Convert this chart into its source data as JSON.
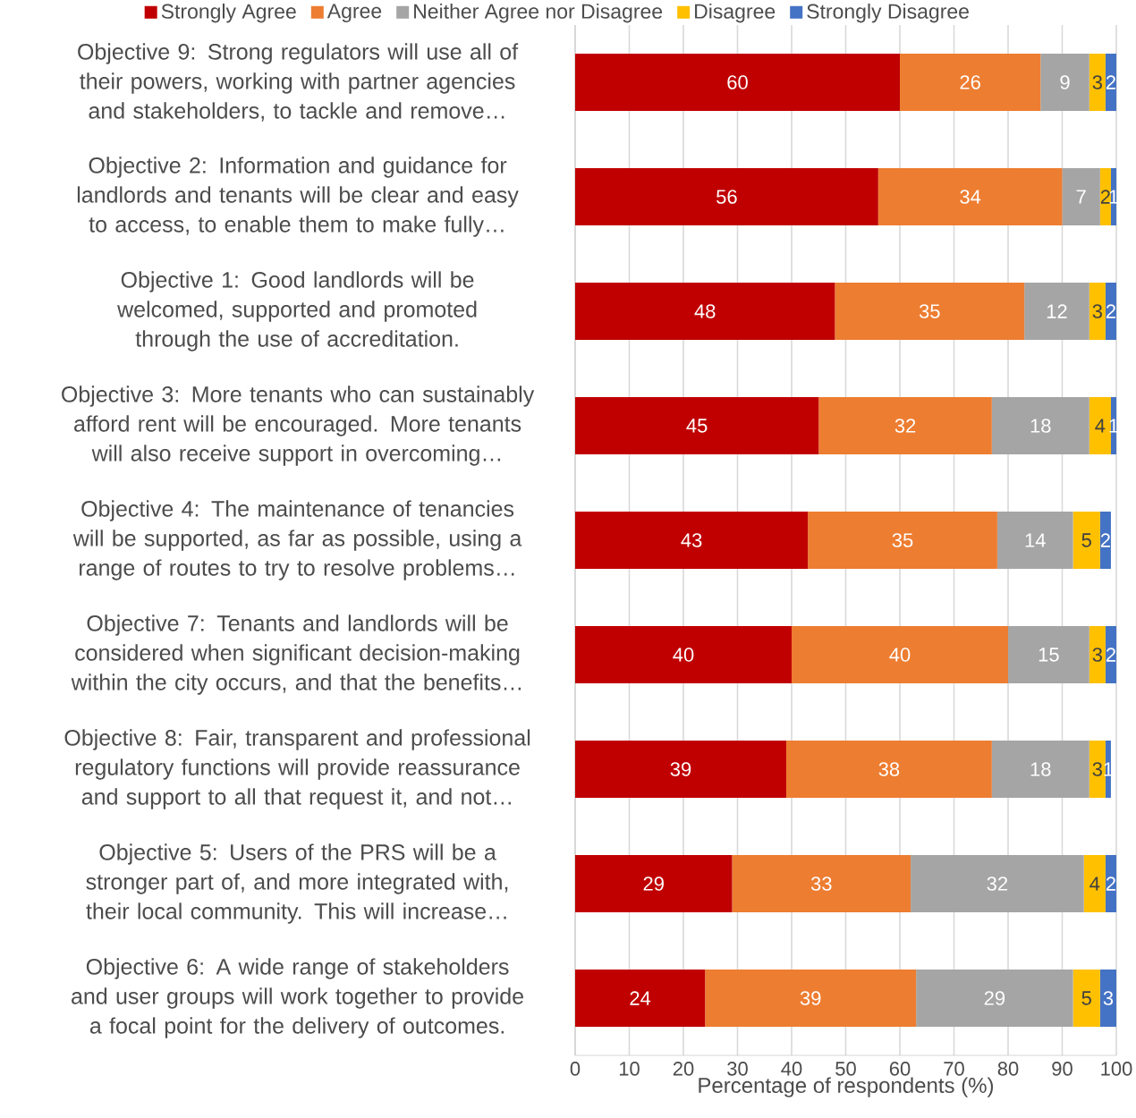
{
  "chart_data": {
    "type": "bar",
    "orientation": "horizontal",
    "stacked": true,
    "data_labels": true,
    "grid": "x",
    "legend": "top",
    "xlabel": "Percentage of respondents (%)",
    "xlim": [
      0,
      100
    ],
    "xticks": [
      0,
      10,
      20,
      30,
      40,
      50,
      60,
      70,
      80,
      90,
      100
    ],
    "categories": [
      "Objective 9: Strong regulators will use all of their powers, working with partner agencies and stakeholders, to tackle and remove…",
      "Objective 2: Information and guidance for landlords and tenants will be clear and easy to access, to enable them to make fully…",
      "Objective 1: Good landlords will be welcomed, supported and promoted through the use of accreditation.",
      "Objective 3: More tenants who can sustainably afford rent will be encouraged. More tenants will also receive support in overcoming…",
      "Objective 4: The maintenance of tenancies will be supported, as far as possible, using a range of routes to try to resolve problems…",
      "Objective 7: Tenants and landlords will be considered when significant decision-making within the city occurs, and that the benefits…",
      "Objective 8: Fair, transparent and professional regulatory functions will provide reassurance and support to all that request it, and not…",
      "Objective 5: Users of the PRS will be a stronger part of, and more integrated with, their local community. This will increase…",
      "Objective 6: A wide range of stakeholders and user groups will work together to provide a focal point for the delivery of outcomes."
    ],
    "series": [
      {
        "name": "Strongly Agree",
        "color": "#c00000",
        "values": [
          60,
          56,
          48,
          45,
          43,
          40,
          39,
          29,
          24
        ]
      },
      {
        "name": "Agree",
        "color": "#ed7d31",
        "values": [
          26,
          34,
          35,
          32,
          35,
          40,
          38,
          33,
          39
        ]
      },
      {
        "name": "Neither Agree nor Disagree",
        "color": "#a5a5a5",
        "values": [
          9,
          7,
          12,
          18,
          14,
          15,
          18,
          32,
          29
        ]
      },
      {
        "name": "Disagree",
        "color": "#ffc000",
        "values": [
          3,
          2,
          3,
          4,
          5,
          3,
          3,
          4,
          5
        ]
      },
      {
        "name": "Strongly Disagree",
        "color": "#4472c4",
        "values": [
          2,
          1,
          2,
          1,
          2,
          2,
          1,
          2,
          3
        ]
      }
    ]
  }
}
